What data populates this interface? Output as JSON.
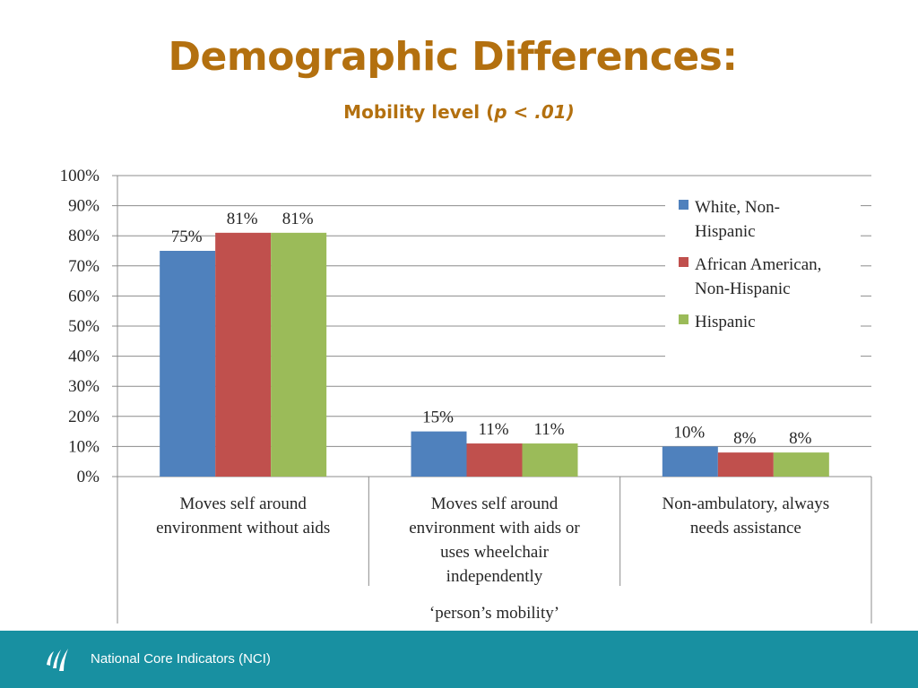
{
  "slide": {
    "title": "Demographic Differences:",
    "subtitle_prefix": "Mobility level (",
    "subtitle_italic": "p < .01)"
  },
  "chart_data": {
    "type": "bar",
    "title": "",
    "xlabel": "‘person’s mobility’",
    "ylabel": "",
    "ylim": [
      0,
      100
    ],
    "yticks": [
      "0%",
      "10%",
      "20%",
      "30%",
      "40%",
      "50%",
      "60%",
      "70%",
      "80%",
      "90%",
      "100%"
    ],
    "grid": true,
    "legend_position": "top-right",
    "categories": [
      [
        "Moves self around",
        "environment without aids"
      ],
      [
        "Moves self around",
        "environment with aids or",
        "uses wheelchair",
        "independently"
      ],
      [
        "Non-ambulatory, always",
        "needs assistance"
      ]
    ],
    "series": [
      {
        "name": "White, Non-Hispanic",
        "legend_lines": [
          "White, Non-",
          "Hispanic"
        ],
        "color": "#4f81bd",
        "values": [
          75,
          15,
          10
        ],
        "labels": [
          "75%",
          "15%",
          "10%"
        ]
      },
      {
        "name": "African American, Non-Hispanic",
        "legend_lines": [
          "African American,",
          "Non-Hispanic"
        ],
        "color": "#c0504d",
        "values": [
          81,
          11,
          8
        ],
        "labels": [
          "81%",
          "11%",
          "8%"
        ]
      },
      {
        "name": "Hispanic",
        "legend_lines": [
          "Hispanic"
        ],
        "color": "#9bbb59",
        "values": [
          81,
          11,
          8
        ],
        "labels": [
          "81%",
          "11%",
          "8%"
        ]
      }
    ]
  },
  "footer": {
    "text": "National Core Indicators (NCI)",
    "logo_icon": "nci-logo-icon"
  }
}
